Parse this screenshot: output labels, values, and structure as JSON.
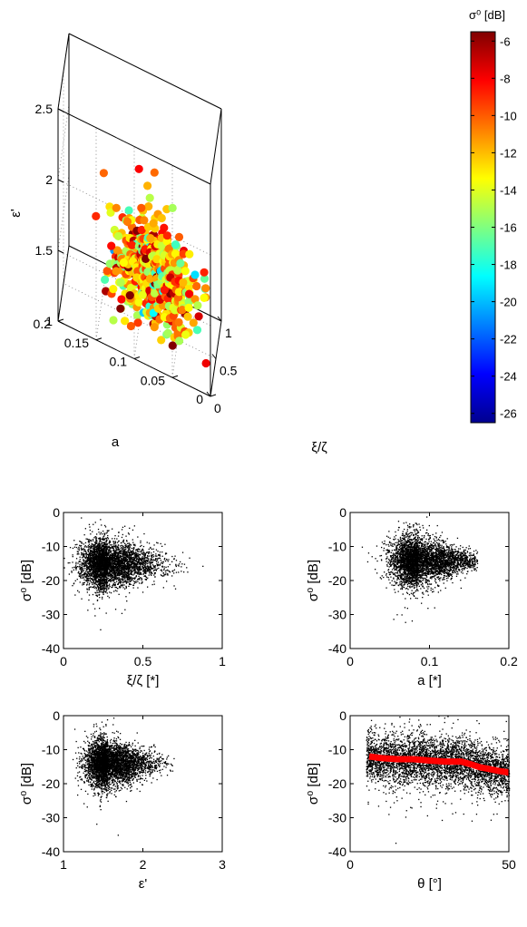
{
  "chart_data": [
    {
      "type": "scatter",
      "subtype": "3d-scatter-colormapped",
      "xlabel": "ξ/ζ",
      "ylabel": "a",
      "zlabel": "ε'",
      "xlim": [
        0,
        1
      ],
      "ylim": [
        0,
        0.2
      ],
      "zlim": [
        1,
        2.5
      ],
      "xticks": [
        "0",
        "0.5",
        "1"
      ],
      "yticks": [
        "0",
        "0.05",
        "0.1",
        "0.15",
        "0.2"
      ],
      "zticks": [
        "1",
        "1.5",
        "2",
        "2.5"
      ],
      "grid": true,
      "colorbar": {
        "title": "σ⁰ [dB]",
        "range": [
          -26.5,
          -5.5
        ],
        "colormap": "jet",
        "ticks": [
          "-6",
          "-8",
          "-10",
          "-12",
          "-14",
          "-16",
          "-18",
          "-20",
          "-22",
          "-24",
          "-26"
        ]
      },
      "cluster": {
        "x_center": 0.3,
        "x_spread": 0.12,
        "y_center": 0.08,
        "y_spread": 0.025,
        "z_center": 1.5,
        "z_spread": 0.15,
        "color_center_dB": -12,
        "color_spread_dB": 3
      }
    },
    {
      "type": "scatter",
      "xlabel": "ξ/ζ [*]",
      "ylabel": "σ⁰ [dB]",
      "xlim": [
        0,
        1
      ],
      "ylim": [
        -40,
        0
      ],
      "xticks": [
        "0",
        "0.5",
        "1"
      ],
      "yticks": [
        "0",
        "-10",
        "-20",
        "-30",
        "-40"
      ],
      "color": "#000000",
      "cluster": {
        "x_center": 0.27,
        "x_spread": 0.1,
        "x_tail_max": 0.88,
        "y_center": -15,
        "y_spread": 3.5
      }
    },
    {
      "type": "scatter",
      "xlabel": "a [*]",
      "ylabel": "σ⁰ [dB]",
      "xlim": [
        0,
        0.2
      ],
      "ylim": [
        -40,
        0
      ],
      "xticks": [
        "0",
        "0.1",
        "0.2"
      ],
      "yticks": [
        "0",
        "-10",
        "-20",
        "-30",
        "-40"
      ],
      "color": "#000000",
      "cluster": {
        "x_center": 0.085,
        "x_spread": 0.022,
        "x_tail_max": 0.16,
        "y_center": -14,
        "y_spread": 3.5
      }
    },
    {
      "type": "scatter",
      "xlabel": "ε'",
      "ylabel": "σ⁰ [dB]",
      "xlim": [
        1,
        3
      ],
      "ylim": [
        -40,
        0
      ],
      "xticks": [
        "1",
        "2",
        "3"
      ],
      "yticks": [
        "0",
        "-10",
        "-20",
        "-30",
        "-40"
      ],
      "color": "#000000",
      "cluster": {
        "x_center": 1.55,
        "x_spread": 0.18,
        "x_tail_max": 2.4,
        "y_center": -14,
        "y_spread": 3.5
      }
    },
    {
      "type": "scatter",
      "xlabel": "θ [°]",
      "ylabel": "σ⁰ [dB]",
      "xlim": [
        0,
        50
      ],
      "ylim": [
        -40,
        0
      ],
      "xticks": [
        "0",
        "50"
      ],
      "yticks": [
        "0",
        "-10",
        "-20",
        "-30",
        "-40"
      ],
      "color": "#000000",
      "cluster": {
        "x_range": [
          5,
          50
        ],
        "y_spread": 3.5
      },
      "series": [
        {
          "type": "line",
          "color": "#ff0000",
          "x": [
            6,
            10,
            15,
            20,
            25,
            30,
            35,
            38,
            41,
            44,
            47,
            50
          ],
          "y": [
            -12,
            -12.5,
            -12.8,
            -12.8,
            -13.2,
            -13.5,
            -13.5,
            -14.3,
            -15.2,
            -15.7,
            -16.3,
            -16.7
          ]
        }
      ]
    }
  ]
}
